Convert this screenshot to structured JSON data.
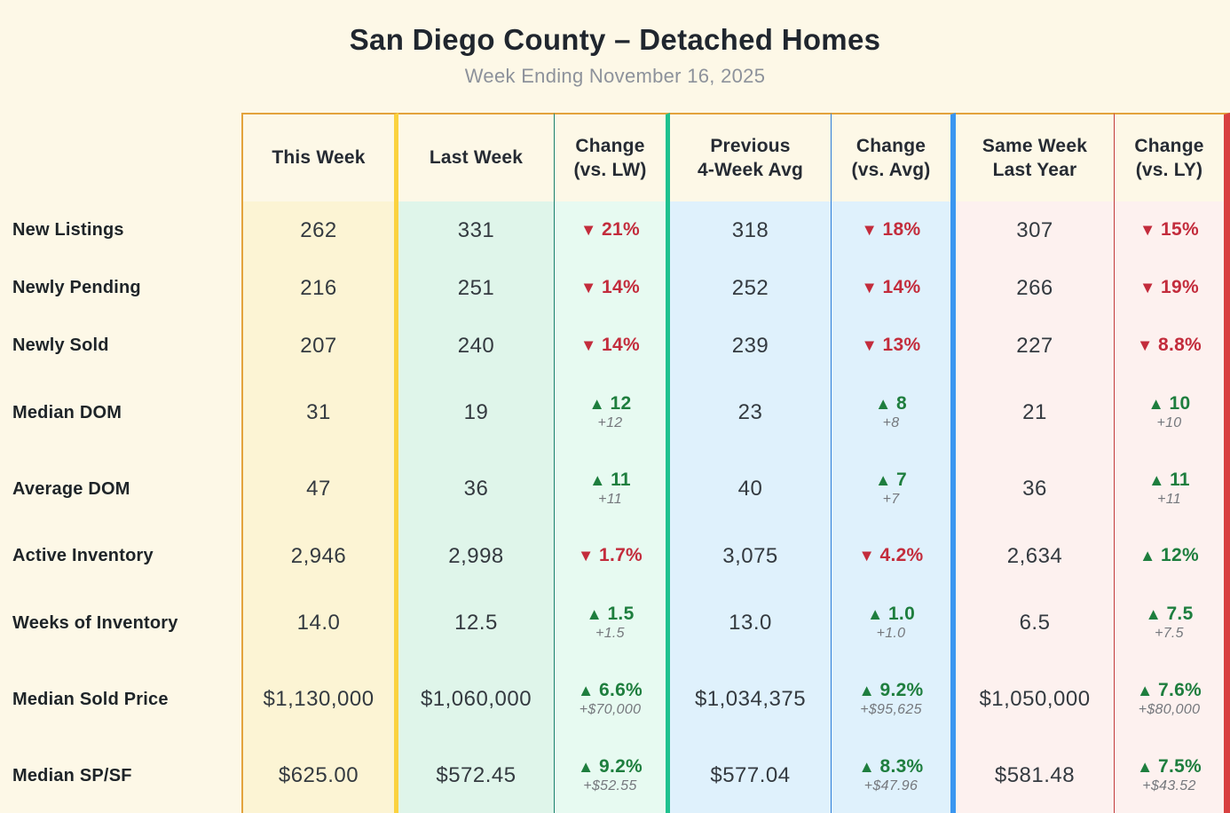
{
  "header": {
    "title": "San Diego County – Detached Homes",
    "subtitle": "Week Ending November 16, 2025"
  },
  "icons": {
    "up": "▲",
    "down": "▼"
  },
  "palette": {
    "page_bg": "#FDF8E7",
    "this_week_bg": "#FCF4D4",
    "last_week_bg": "#DFF5EA",
    "change_lw_bg": "#E7FAF1",
    "avg_bg": "#DFF1FC",
    "last_year_bg": "#FDF1EF",
    "gold_thick": "#FBD23F",
    "gold_thin": "#E3A33C",
    "teal_thin": "#19806D",
    "green_thick": "#1FC18F",
    "blue_thin": "#2B7CD8",
    "blue_thick": "#3A96F0",
    "red_thin": "#C23B3B",
    "red_thick": "#D84040",
    "up_text": "#1E7E3E",
    "down_text": "#C32C3C"
  },
  "chart_data": {
    "type": "table",
    "title": "San Diego County – Detached Homes",
    "subtitle": "Week Ending November 16, 2025",
    "columns": [
      {
        "label": "This Week"
      },
      {
        "label": "Last Week"
      },
      {
        "label": "Change\n(vs. LW)"
      },
      {
        "label": "Previous\n4-Week Avg"
      },
      {
        "label": "Change\n(vs. Avg)"
      },
      {
        "label": "Same Week\nLast Year"
      },
      {
        "label": "Change\n(vs. LY)"
      }
    ],
    "rows": [
      {
        "label": "New Listings",
        "cells": [
          {
            "v": "262"
          },
          {
            "v": "331"
          },
          {
            "dir": "down",
            "v": "21%"
          },
          {
            "v": "318"
          },
          {
            "dir": "down",
            "v": "18%"
          },
          {
            "v": "307"
          },
          {
            "dir": "down",
            "v": "15%"
          }
        ]
      },
      {
        "label": "Newly Pending",
        "cells": [
          {
            "v": "216"
          },
          {
            "v": "251"
          },
          {
            "dir": "down",
            "v": "14%"
          },
          {
            "v": "252"
          },
          {
            "dir": "down",
            "v": "14%"
          },
          {
            "v": "266"
          },
          {
            "dir": "down",
            "v": "19%"
          }
        ]
      },
      {
        "label": "Newly Sold",
        "cells": [
          {
            "v": "207"
          },
          {
            "v": "240"
          },
          {
            "dir": "down",
            "v": "14%"
          },
          {
            "v": "239"
          },
          {
            "dir": "down",
            "v": "13%"
          },
          {
            "v": "227"
          },
          {
            "dir": "down",
            "v": "8.8%"
          }
        ]
      },
      {
        "label": "Median DOM",
        "cells": [
          {
            "v": "31"
          },
          {
            "v": "19"
          },
          {
            "dir": "up",
            "v": "12",
            "sub": "+12"
          },
          {
            "v": "23"
          },
          {
            "dir": "up",
            "v": "8",
            "sub": "+8"
          },
          {
            "v": "21"
          },
          {
            "dir": "up",
            "v": "10",
            "sub": "+10"
          }
        ]
      },
      {
        "label": "Average DOM",
        "cells": [
          {
            "v": "47"
          },
          {
            "v": "36"
          },
          {
            "dir": "up",
            "v": "11",
            "sub": "+11"
          },
          {
            "v": "40"
          },
          {
            "dir": "up",
            "v": "7",
            "sub": "+7"
          },
          {
            "v": "36"
          },
          {
            "dir": "up",
            "v": "11",
            "sub": "+11"
          }
        ]
      },
      {
        "label": "Active Inventory",
        "cells": [
          {
            "v": "2,946"
          },
          {
            "v": "2,998"
          },
          {
            "dir": "down",
            "v": "1.7%"
          },
          {
            "v": "3,075"
          },
          {
            "dir": "down",
            "v": "4.2%"
          },
          {
            "v": "2,634"
          },
          {
            "dir": "up",
            "v": "12%"
          }
        ]
      },
      {
        "label": "Weeks of Inventory",
        "cells": [
          {
            "v": "14.0"
          },
          {
            "v": "12.5"
          },
          {
            "dir": "up",
            "v": "1.5",
            "sub": "+1.5"
          },
          {
            "v": "13.0"
          },
          {
            "dir": "up",
            "v": "1.0",
            "sub": "+1.0"
          },
          {
            "v": "6.5"
          },
          {
            "dir": "up",
            "v": "7.5",
            "sub": "+7.5"
          }
        ]
      },
      {
        "label": "Median Sold Price",
        "cells": [
          {
            "v": "$1,130,000"
          },
          {
            "v": "$1,060,000"
          },
          {
            "dir": "up",
            "v": "6.6%",
            "sub": "+$70,000"
          },
          {
            "v": "$1,034,375"
          },
          {
            "dir": "up",
            "v": "9.2%",
            "sub": "+$95,625"
          },
          {
            "v": "$1,050,000"
          },
          {
            "dir": "up",
            "v": "7.6%",
            "sub": "+$80,000"
          }
        ]
      },
      {
        "label": "Median SP/SF",
        "cells": [
          {
            "v": "$625.00"
          },
          {
            "v": "$572.45"
          },
          {
            "dir": "up",
            "v": "9.2%",
            "sub": "+$52.55"
          },
          {
            "v": "$577.04"
          },
          {
            "dir": "up",
            "v": "8.3%",
            "sub": "+$47.96"
          },
          {
            "v": "$581.48"
          },
          {
            "dir": "up",
            "v": "7.5%",
            "sub": "+$43.52"
          }
        ]
      }
    ]
  }
}
